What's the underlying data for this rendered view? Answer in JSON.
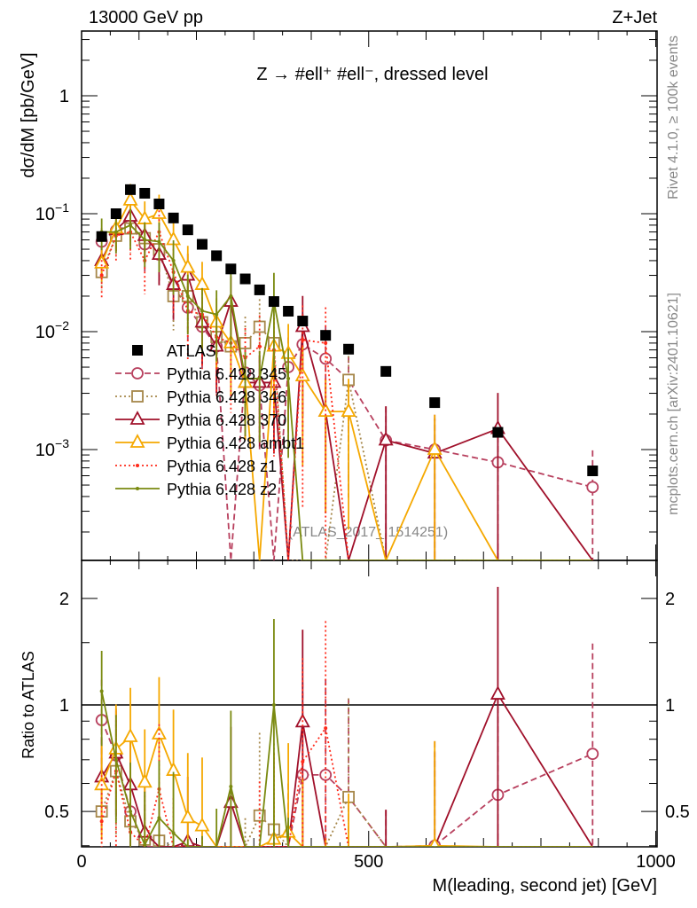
{
  "chart_data": {
    "type": "line",
    "header_left": "13000 GeV pp",
    "header_right": "Z+Jet",
    "title": "Z → #ell⁺ #ell⁻, dressed level",
    "ylabel": "dσ/dM [pb/GeV]",
    "ratio_ylabel": "Ratio to ATLAS",
    "xlabel": "M(leading, second jet) [GeV]",
    "side_label_top": "Rivet 4.1.0, ≥ 100k events",
    "side_label_bottom": "mcplots.cern.ch [arXiv:2401.10621]",
    "watermark": "(ATLAS_2017_I1514251)",
    "xlim": [
      0,
      1000
    ],
    "ylim": [
      0.000115,
      3.5
    ],
    "yscale": "log",
    "ratio_ylim": [
      0.4,
      2.56
    ],
    "x_tick_labels": [
      "0",
      "500",
      "1000"
    ],
    "y_tick_labels": [
      {
        "base": "1",
        "exp": ""
      },
      {
        "base": "10",
        "exp": "−1"
      },
      {
        "base": "10",
        "exp": "−2"
      },
      {
        "base": "10",
        "exp": "−3"
      }
    ],
    "ratio_tick_labels": [
      "2",
      "1",
      "0.5"
    ],
    "legend_position": "center-left",
    "x": [
      35,
      60,
      85,
      110,
      135,
      160,
      185,
      210,
      235,
      260,
      285,
      310,
      335,
      360,
      385,
      425,
      465,
      530,
      615,
      725,
      890
    ],
    "data": {
      "name": "ATLAS",
      "values": [
        0.064,
        0.1,
        0.16,
        0.149,
        0.121,
        0.092,
        0.073,
        0.055,
        0.044,
        0.034,
        0.028,
        0.0226,
        0.018,
        0.0149,
        0.0123,
        0.0093,
        0.0071,
        0.0046,
        0.0025,
        0.0014,
        0.00066
      ]
    },
    "series": [
      {
        "name": "Pythia 6.428 345",
        "color": "#b8405e",
        "marker": "circle",
        "dash": "7,4",
        "rel_err": 0.3,
        "values": [
          0.058,
          0.072,
          0.08,
          0.055,
          0.045,
          0.024,
          0.016,
          0.011,
          0.0075,
          null,
          0.0045,
          0.0035,
          null,
          0.005,
          0.0078,
          0.0059,
          0.0039,
          0.0012,
          0.001,
          0.00078,
          0.00048
        ]
      },
      {
        "name": "Pythia 6.428 346",
        "color": "#a6874a",
        "marker": "square",
        "dash": "2,3",
        "rel_err": 0.3,
        "values": [
          0.032,
          0.065,
          0.075,
          0.062,
          0.05,
          0.02,
          0.02,
          0.012,
          0.009,
          0.0075,
          0.008,
          0.011,
          0.008,
          null,
          null,
          null,
          0.0039,
          null,
          null,
          null,
          null
        ]
      },
      {
        "name": "Pythia 6.428 370",
        "color": "#a0102a",
        "marker": "triangle",
        "dash": "",
        "rel_err": 0.3,
        "values": [
          0.04,
          0.073,
          0.095,
          0.065,
          0.045,
          0.025,
          0.03,
          0.012,
          0.0075,
          0.018,
          0.0037,
          0.0037,
          0.0037,
          null,
          0.011,
          0.0021,
          null,
          0.0012,
          0.00093,
          0.0015,
          null
        ]
      },
      {
        "name": "Pythia 6.428 ambt1",
        "color": "#f5a800",
        "marker": "triangle",
        "dash": "",
        "rel_err": 0.3,
        "values": [
          0.038,
          0.075,
          0.13,
          0.09,
          0.1,
          0.06,
          0.035,
          0.025,
          0.012,
          0.008,
          0.0037,
          null,
          0.0075,
          0.0065,
          0.0042,
          0.0021,
          0.0021,
          null,
          0.001,
          null,
          null
        ]
      },
      {
        "name": "Pythia 6.428 z1",
        "color": "#ff2a1a",
        "marker": "dot",
        "dash": "2,3",
        "rel_err": 0.35,
        "values": [
          0.03,
          0.065,
          0.07,
          0.04,
          0.07,
          0.032,
          0.015,
          0.014,
          0.009,
          0.008,
          0.006,
          0.0075,
          0.007,
          null,
          0.0085,
          0.008,
          null,
          null,
          null,
          null,
          null
        ]
      },
      {
        "name": "Pythia 6.428 z2",
        "color": "#7a8a10",
        "marker": "dot",
        "dash": "",
        "rel_err": 0.3,
        "values": [
          0.07,
          0.07,
          0.08,
          0.06,
          0.058,
          0.04,
          0.02,
          0.015,
          0.014,
          0.02,
          0.004,
          0.004,
          0.018,
          0.004,
          null,
          null,
          null,
          null,
          null,
          null,
          null
        ]
      }
    ]
  }
}
